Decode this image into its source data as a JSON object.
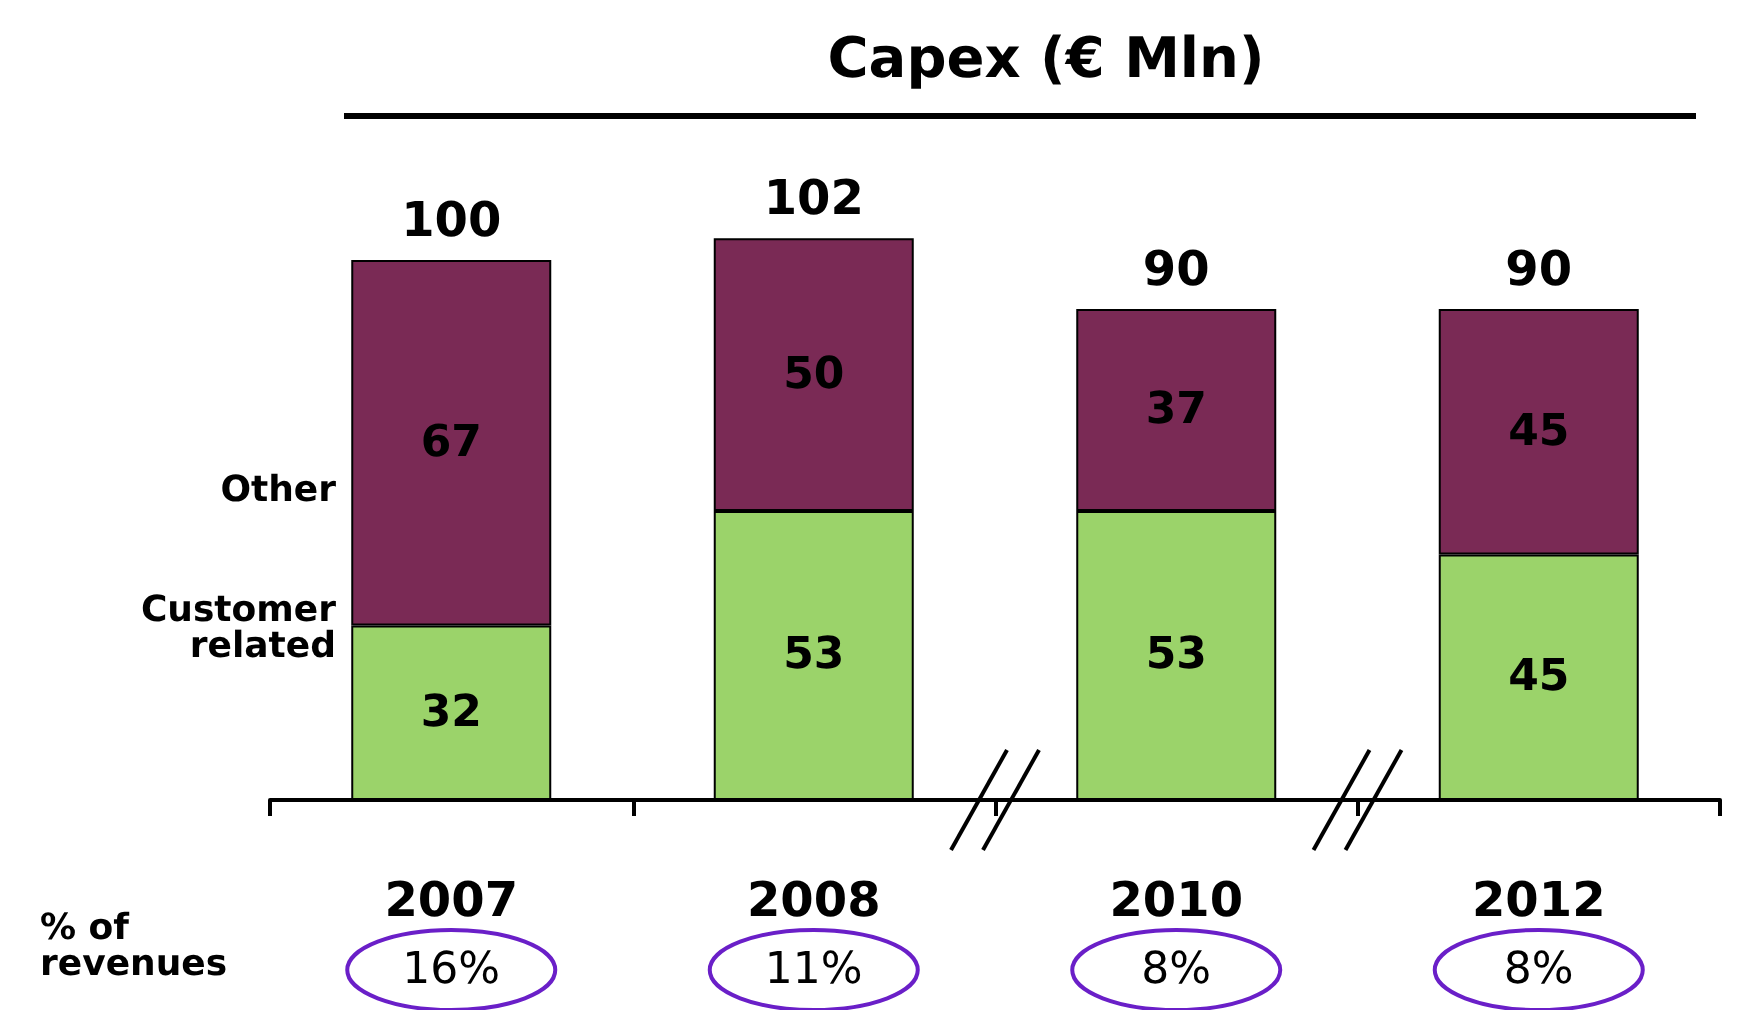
{
  "chart_data": {
    "type": "bar",
    "title": "Capex (€ Mln)",
    "categories": [
      "2007",
      "2008",
      "2010",
      "2012"
    ],
    "stacked": true,
    "data_labels": true,
    "series": [
      {
        "name": "Customer related",
        "color": "#9bd36a",
        "values": [
          32,
          53,
          53,
          45
        ]
      },
      {
        "name": "Other",
        "color": "#7a2a55",
        "values": [
          67,
          50,
          37,
          45
        ]
      }
    ],
    "totals": [
      "100",
      "102",
      "90",
      "90"
    ],
    "annotations": [
      "% of revenues",
      "16%",
      "11%",
      "8%",
      "8%"
    ],
    "legend": false
  }
}
